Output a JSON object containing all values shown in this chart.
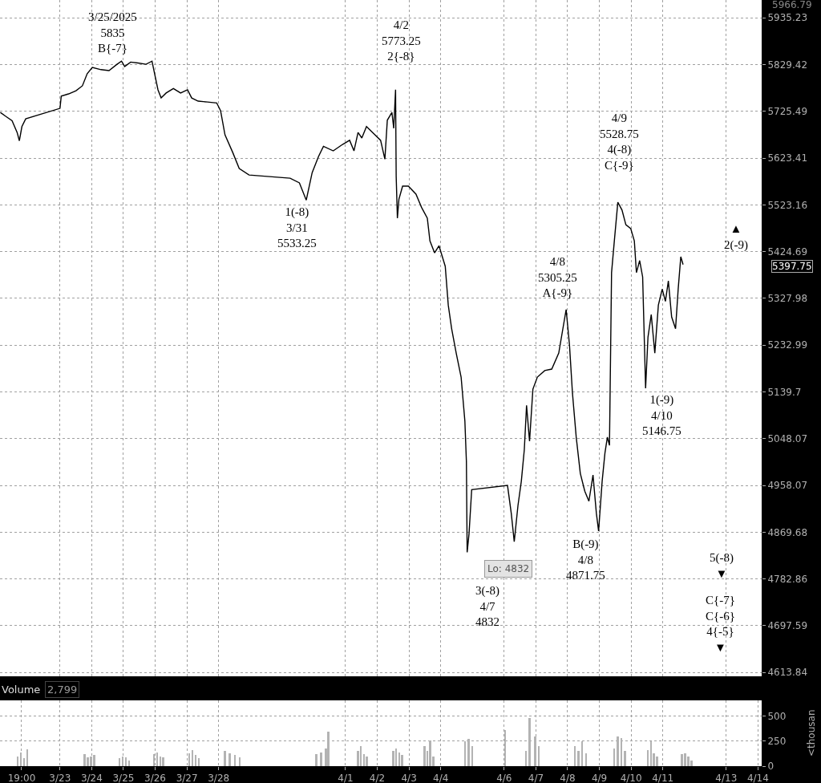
{
  "chart_data": [
    {
      "type": "line",
      "color": "#000000",
      "log": true,
      "grid": true,
      "tick_labels": "y",
      "x": [
        "2025-03-21T02:53",
        "2025-03-21T07:12",
        "2025-03-21T11:46",
        "2025-03-21T15:36",
        "2025-03-21T17:17",
        "2025-03-21T19:12",
        "2025-03-21T22:05",
        "2025-03-23T00:00",
        "2025-03-23T00:58",
        "2025-03-23T06:33",
        "2025-03-23T12:07",
        "2025-03-23T16:58",
        "2025-03-23T20:36",
        "2025-03-24T00:29",
        "2025-03-24T07:02",
        "2025-03-24T13:05",
        "2025-03-24T19:09",
        "2025-03-24T22:33",
        "2025-03-25T00:57",
        "2025-03-25T05:28",
        "2025-03-25T10:56",
        "2025-03-25T17:07",
        "2025-03-25T21:37",
        "2025-03-26T00:00",
        "2025-03-26T02:08",
        "2025-03-26T04:31",
        "2025-03-26T08:19",
        "2025-03-26T13:47",
        "2025-03-26T19:15",
        "2025-03-27T00:29",
        "2025-03-27T03:38",
        "2025-03-27T08:29",
        "2025-03-27T15:31",
        "2025-03-27T22:33",
        "2025-03-28T01:29",
        "2025-03-28T04:49",
        "2025-03-28T10:46",
        "2025-03-28T15:35",
        "2025-03-28T23:01",
        "2025-03-30T06:04",
        "2025-03-30T13:07",
        "2025-03-30T18:18",
        "2025-03-30T22:46",
        "2025-03-31T03:35",
        "2025-03-31T07:18",
        "2025-03-31T14:43",
        "2025-03-31T21:46",
        "2025-04-01T03:05",
        "2025-04-01T06:23",
        "2025-04-01T09:28",
        "2025-04-01T12:20",
        "2025-04-01T15:51",
        "2025-04-01T22:14",
        "2025-04-02T02:32",
        "2025-04-02T05:46",
        "2025-04-02T07:37",
        "2025-04-02T11:05",
        "2025-04-02T12:28",
        "2025-04-02T13:51",
        "2025-04-02T14:19",
        "2025-04-02T15:14",
        "2025-04-02T16:23",
        "2025-04-02T19:10",
        "2025-04-02T23:32",
        "2025-04-03T05:17",
        "2025-04-03T09:28",
        "2025-04-03T13:52",
        "2025-04-03T15:51",
        "2025-04-03T19:23",
        "2025-04-03T22:41",
        "2025-04-04T03:26",
        "2025-04-04T05:43",
        "2025-04-04T08:17",
        "2025-04-04T11:43",
        "2025-04-04T15:26",
        "2025-04-04T18:17",
        "2025-04-04T19:26",
        "2025-04-04T20:00",
        "2025-04-04T21:26",
        "2025-04-04T23:26",
        "2025-04-06T02:32",
        "2025-04-06T05:22",
        "2025-04-06T07:37",
        "2025-04-06T10:27",
        "2025-04-06T12:59",
        "2025-04-06T15:15",
        "2025-04-06T16:56",
        "2025-04-06T19:12",
        "2025-04-06T21:44",
        "2025-04-07T01:07",
        "2025-04-07T06:42",
        "2025-04-07T12:00",
        "2025-04-07T17:18",
        "2025-04-07T22:53",
        "2025-04-08T01:25",
        "2025-04-08T03:40",
        "2025-04-08T06:30",
        "2025-04-08T09:36",
        "2025-04-08T12:59",
        "2025-04-08T16:06",
        "2025-04-08T19:12",
        "2025-04-08T21:45",
        "2025-04-08T23:26",
        "2025-04-09T02:07",
        "2025-04-09T04:13",
        "2025-04-09T06:04",
        "2025-04-09T07:39",
        "2025-04-09T09:14",
        "2025-04-09T11:20",
        "2025-04-09T13:59",
        "2025-04-09T17:08",
        "2025-04-09T20:03",
        "2025-04-09T23:44",
        "2025-04-10T02:28",
        "2025-04-10T04:02",
        "2025-04-10T06:30",
        "2025-04-10T08:45",
        "2025-04-10T10:59",
        "2025-04-10T12:47",
        "2025-04-10T15:15",
        "2025-04-10T17:57",
        "2025-04-10T20:38",
        "2025-04-10T23:33",
        "2025-04-11T01:59",
        "2025-04-11T04:12",
        "2025-04-11T06:41",
        "2025-04-11T09:39",
        "2025-04-11T11:38",
        "2025-04-11T13:36",
        "2025-04-11T15:20"
      ],
      "values": [
        5723,
        5714,
        5705,
        5679,
        5661,
        5692,
        5709,
        5732,
        5759,
        5764,
        5771,
        5782,
        5809,
        5823,
        5818,
        5816,
        5830,
        5837,
        5825,
        5835,
        5833,
        5830,
        5837,
        5803,
        5773,
        5755,
        5766,
        5776,
        5766,
        5773,
        5755,
        5748,
        5746,
        5744,
        5727,
        5674,
        5635,
        5601,
        5587,
        5580,
        5570,
        5533.25,
        5592,
        5627,
        5649,
        5639,
        5653,
        5662,
        5639,
        5679,
        5667,
        5692,
        5674,
        5662,
        5621,
        5706,
        5723,
        5688,
        5773.25,
        5584,
        5495,
        5535,
        5563,
        5563,
        5546,
        5518,
        5495,
        5447,
        5422,
        5437,
        5394,
        5314,
        5266,
        5217,
        5169,
        5082,
        5004,
        4832,
        4867,
        4950,
        4958,
        4905,
        4852,
        4920,
        4966,
        5027,
        5113,
        5043,
        5145,
        5169,
        5182,
        5185,
        5217,
        5305.25,
        5233,
        5137,
        5051,
        4981,
        4947,
        4928,
        4978,
        4905,
        4871.75,
        4966,
        5020,
        5051,
        5035,
        5381,
        5447,
        5528.75,
        5512,
        5481,
        5473,
        5447,
        5381,
        5406,
        5372,
        5146.75,
        5249,
        5295,
        5217,
        5314,
        5347,
        5322,
        5364,
        5290,
        5266,
        5347,
        5414,
        5397.75
      ],
      "xlim": [
        "2025-03-21T02:38",
        "2025-04-14T02:47"
      ],
      "ylim": [
        4607,
        5976
      ],
      "xticks": [
        {
          "value": "2025-03-23",
          "label": null
        },
        {
          "value": "2025-03-24",
          "label": null
        },
        {
          "value": "2025-03-25",
          "label": null
        },
        {
          "value": "2025-03-26",
          "label": null
        },
        {
          "value": "2025-03-27",
          "label": null
        },
        {
          "value": "2025-03-28",
          "label": null
        },
        {
          "value": "2025-04-01",
          "label": null
        },
        {
          "value": "2025-04-02",
          "label": null
        },
        {
          "value": "2025-04-03",
          "label": null
        },
        {
          "value": "2025-04-04",
          "label": null
        },
        {
          "value": "2025-04-06",
          "label": null
        },
        {
          "value": "2025-04-07",
          "label": null
        },
        {
          "value": "2025-04-08",
          "label": null
        },
        {
          "value": "2025-04-09",
          "label": null
        },
        {
          "value": "2025-04-10",
          "label": null
        },
        {
          "value": "2025-04-11",
          "label": null
        },
        {
          "value": "2025-04-13",
          "label": null
        }
      ],
      "yticks": [
        4613.84,
        4697.59,
        4782.86,
        4869.68,
        4958.07,
        5048.07,
        5139.7,
        5232.99,
        5327.98,
        5424.69,
        5523.16,
        5623.41,
        5725.49,
        5829.42,
        5935.23
      ],
      "annotations": [
        "3/25/2025\n5835\nB{-7}",
        "4/2\n5773.25\n2{-8}",
        "1(-8)\n3/31\n5533.25",
        "4/9\n5528.75\n4(-8)\nC{-9}",
        "4/8\n5305.25\nA{-9}",
        "▲\n2(-9)",
        "1(-9)\n4/10\n5146.75",
        "3(-8)\n4/7\n4832",
        "B(-9)\n4/8\n4871.75",
        "Lo: 4832",
        "5(-8)\n▼",
        "C{-7}\nC{-6}\n4{-5}\n▼",
        "5966.79",
        "5397.75"
      ]
    },
    {
      "type": "bar",
      "title": "Volume",
      "subtitle": "2,799",
      "ylabel": "<thousan",
      "color": "#b3b3b3",
      "grid": true,
      "x": [
        "2025-03-21T16:05",
        "2025-03-21T18:29",
        "2025-03-21T20:53",
        "2025-03-21T23:17",
        "2025-03-23T18:40",
        "2025-03-23T21:05",
        "2025-03-23T23:30",
        "2025-03-24T01:56",
        "2025-03-24T21:05",
        "2025-03-24T23:31",
        "2025-03-25T01:54",
        "2025-03-25T04:17",
        "2025-03-25T23:03",
        "2025-03-26T01:26",
        "2025-03-26T03:48",
        "2025-03-26T06:11",
        "2025-03-27T01:42",
        "2025-03-27T04:07",
        "2025-03-27T06:33",
        "2025-03-27T08:58",
        "2025-03-28T04:49",
        "2025-03-28T08:32",
        "2025-03-28T12:15",
        "2025-03-28T15:57",
        "2025-03-31T01:44",
        "2025-03-31T05:26",
        "2025-03-31T09:09",
        "2025-03-31T11:00",
        "2025-04-01T09:28",
        "2025-04-01T11:40",
        "2025-04-01T13:52",
        "2025-04-01T16:04",
        "2025-04-02T12:00",
        "2025-04-02T14:19",
        "2025-04-02T16:37",
        "2025-04-02T18:56",
        "2025-04-03T11:40",
        "2025-04-03T13:52",
        "2025-04-03T16:04",
        "2025-04-03T18:17",
        "2025-04-04T18:17",
        "2025-04-04T21:09",
        "2025-04-04T23:50",
        "2025-04-06T00:34",
        "2025-04-06T16:23",
        "2025-04-06T19:12",
        "2025-04-06T23:26",
        "2025-04-07T02:14",
        "2025-04-08T05:22",
        "2025-04-08T08:11",
        "2025-04-08T11:01",
        "2025-04-08T13:50",
        "2025-04-09T11:20",
        "2025-04-09T13:59",
        "2025-04-09T16:37",
        "2025-04-09T19:15",
        "2025-04-10T12:47",
        "2025-04-10T15:02",
        "2025-04-10T17:16",
        "2025-04-10T19:31",
        "2025-04-11T14:21",
        "2025-04-11T16:49",
        "2025-04-11T19:18",
        "2025-04-11T21:46"
      ],
      "values": [
        100,
        140,
        80,
        170,
        120,
        90,
        100,
        110,
        80,
        100,
        90,
        60,
        120,
        140,
        100,
        90,
        130,
        160,
        110,
        80,
        150,
        130,
        110,
        90,
        120,
        140,
        180,
        350,
        150,
        200,
        120,
        100,
        150,
        180,
        140,
        110,
        200,
        150,
        260,
        100,
        250,
        270,
        200,
        360,
        150,
        480,
        300,
        200,
        200,
        150,
        250,
        130,
        180,
        300,
        280,
        150,
        160,
        250,
        130,
        100,
        120,
        130,
        100,
        60
      ],
      "xlim": [
        "2025-03-21T02:38",
        "2025-04-14T02:47"
      ],
      "ylim": [
        0,
        660
      ],
      "xticks": [
        {
          "value": "2025-03-21T19:00",
          "label": "19:00"
        },
        {
          "value": "2025-03-23",
          "label": "3/23"
        },
        {
          "value": "2025-03-24",
          "label": "3/24"
        },
        {
          "value": "2025-03-25",
          "label": "3/25"
        },
        {
          "value": "2025-03-26",
          "label": "3/26"
        },
        {
          "value": "2025-03-27",
          "label": "3/27"
        },
        {
          "value": "2025-03-28",
          "label": "3/28"
        },
        {
          "value": "2025-04-01",
          "label": "4/1"
        },
        {
          "value": "2025-04-02",
          "label": "4/2"
        },
        {
          "value": "2025-04-03",
          "label": "4/3"
        },
        {
          "value": "2025-04-04",
          "label": "4/4"
        },
        {
          "value": "2025-04-06",
          "label": "4/6"
        },
        {
          "value": "2025-04-07",
          "label": "4/7"
        },
        {
          "value": "2025-04-08",
          "label": "4/8"
        },
        {
          "value": "2025-04-09",
          "label": "4/9"
        },
        {
          "value": "2025-04-10",
          "label": "4/10"
        },
        {
          "value": "2025-04-11",
          "label": "4/11"
        },
        {
          "value": "2025-04-13",
          "label": "4/13"
        },
        {
          "value": "2025-04-14",
          "label": "4/14"
        }
      ],
      "yticks": [
        0,
        250,
        500
      ]
    }
  ]
}
